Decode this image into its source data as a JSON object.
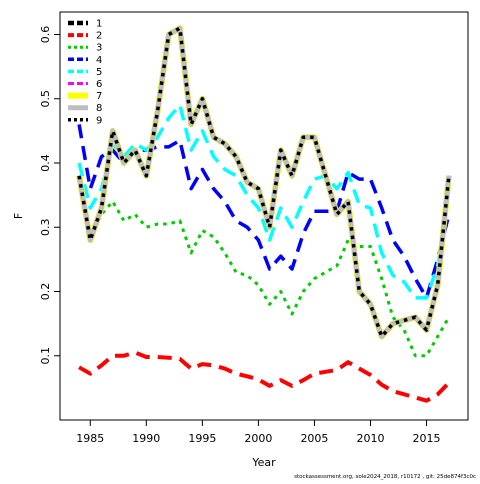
{
  "chart_data": {
    "type": "line",
    "title": "",
    "xlabel": "Year",
    "ylabel": "F",
    "xlim": [
      1982.3,
      2018.7
    ],
    "ylim": [
      0.0,
      0.635
    ],
    "xticks": [
      1985,
      1990,
      1995,
      2000,
      2005,
      2010,
      2015
    ],
    "yticks": [
      0.1,
      0.2,
      0.3,
      0.4,
      0.5,
      0.6
    ],
    "grid": false,
    "legend_position": "top-left",
    "x": [
      1984,
      1985,
      1986,
      1987,
      1988,
      1989,
      1990,
      1991,
      1992,
      1993,
      1994,
      1995,
      1996,
      1997,
      1998,
      1999,
      2000,
      2001,
      2002,
      2003,
      2004,
      2005,
      2006,
      2007,
      2008,
      2009,
      2010,
      2011,
      2012,
      2013,
      2014,
      2015,
      2016,
      2017
    ],
    "series": [
      {
        "name": "1",
        "color": "#000000",
        "dash": "long",
        "values": [
          0.38,
          0.28,
          0.33,
          0.45,
          0.4,
          0.42,
          0.38,
          0.48,
          0.6,
          0.61,
          0.46,
          0.5,
          0.44,
          0.43,
          0.41,
          0.37,
          0.36,
          0.3,
          0.42,
          0.38,
          0.44,
          0.44,
          0.38,
          0.32,
          0.34,
          0.2,
          0.18,
          0.13,
          0.15,
          0.155,
          0.16,
          0.14,
          0.21,
          0.38
        ]
      },
      {
        "name": "2",
        "color": "#ff0000",
        "dash": "long",
        "values": [
          0.082,
          0.072,
          0.085,
          0.1,
          0.1,
          0.105,
          0.098,
          0.098,
          0.097,
          0.095,
          0.08,
          0.087,
          0.085,
          0.08,
          0.072,
          0.068,
          0.063,
          0.053,
          0.062,
          0.053,
          0.062,
          0.072,
          0.075,
          0.078,
          0.09,
          0.08,
          0.07,
          0.055,
          0.045,
          0.04,
          0.035,
          0.03,
          0.04,
          0.058
        ]
      },
      {
        "name": "3",
        "color": "#00cc00",
        "dash": "dot",
        "values": [
          0.37,
          0.29,
          0.32,
          0.34,
          0.31,
          0.32,
          0.3,
          0.305,
          0.305,
          0.31,
          0.26,
          0.295,
          0.285,
          0.26,
          0.23,
          0.225,
          0.21,
          0.18,
          0.2,
          0.165,
          0.2,
          0.22,
          0.23,
          0.24,
          0.28,
          0.27,
          0.27,
          0.22,
          0.16,
          0.14,
          0.1,
          0.1,
          0.13,
          0.16
        ]
      },
      {
        "name": "4",
        "color": "#0000ff",
        "dash": "long",
        "values": [
          0.46,
          0.36,
          0.41,
          0.42,
          0.4,
          0.42,
          0.42,
          0.425,
          0.425,
          0.435,
          0.36,
          0.39,
          0.36,
          0.34,
          0.31,
          0.3,
          0.28,
          0.235,
          0.255,
          0.235,
          0.29,
          0.325,
          0.325,
          0.325,
          0.385,
          0.375,
          0.375,
          0.33,
          0.28,
          0.255,
          0.22,
          0.19,
          0.25,
          0.32
        ]
      },
      {
        "name": "5",
        "color": "#00ffff",
        "dash": "long",
        "values": [
          0.4,
          0.33,
          0.36,
          0.43,
          0.41,
          0.43,
          0.42,
          0.44,
          0.47,
          0.49,
          0.42,
          0.45,
          0.41,
          0.39,
          0.38,
          0.35,
          0.33,
          0.28,
          0.33,
          0.3,
          0.34,
          0.375,
          0.38,
          0.36,
          0.385,
          0.335,
          0.33,
          0.26,
          0.225,
          0.215,
          0.19,
          0.19,
          0.24,
          0.36
        ]
      },
      {
        "name": "6",
        "color": "#ff00ff",
        "dash": "dash",
        "values": [
          0.38,
          0.28,
          0.33,
          0.45,
          0.4,
          0.42,
          0.38,
          0.48,
          0.6,
          0.61,
          0.46,
          0.5,
          0.44,
          0.43,
          0.41,
          0.37,
          0.36,
          0.3,
          0.42,
          0.38,
          0.44,
          0.44,
          0.38,
          0.32,
          0.34,
          0.2,
          0.18,
          0.13,
          0.15,
          0.155,
          0.16,
          0.14,
          0.21,
          0.38
        ]
      },
      {
        "name": "7",
        "color": "#ffff00",
        "dash": "solid",
        "values": [
          0.38,
          0.28,
          0.33,
          0.45,
          0.4,
          0.42,
          0.38,
          0.48,
          0.6,
          0.61,
          0.46,
          0.5,
          0.44,
          0.43,
          0.41,
          0.37,
          0.36,
          0.3,
          0.42,
          0.38,
          0.44,
          0.44,
          0.38,
          0.32,
          0.34,
          0.2,
          0.18,
          0.13,
          0.15,
          0.155,
          0.16,
          0.14,
          0.21,
          0.38
        ]
      },
      {
        "name": "8",
        "color": "#bebebe",
        "dash": "solid",
        "values": [
          0.38,
          0.28,
          0.33,
          0.45,
          0.4,
          0.42,
          0.38,
          0.48,
          0.6,
          0.61,
          0.46,
          0.5,
          0.44,
          0.43,
          0.41,
          0.37,
          0.36,
          0.3,
          0.42,
          0.38,
          0.44,
          0.44,
          0.38,
          0.32,
          0.34,
          0.2,
          0.18,
          0.13,
          0.15,
          0.155,
          0.16,
          0.14,
          0.21,
          0.38
        ]
      },
      {
        "name": "9",
        "color": "#000000",
        "dash": "dot",
        "values": [
          0.38,
          0.28,
          0.33,
          0.45,
          0.4,
          0.42,
          0.38,
          0.48,
          0.6,
          0.61,
          0.46,
          0.5,
          0.44,
          0.43,
          0.41,
          0.37,
          0.36,
          0.3,
          0.42,
          0.38,
          0.44,
          0.44,
          0.38,
          0.32,
          0.34,
          0.2,
          0.18,
          0.13,
          0.15,
          0.155,
          0.16,
          0.14,
          0.21,
          0.38
        ]
      }
    ]
  },
  "footer": "stockassessment.org, sole2024_2018, r10172 , git: 25de874f3c0c"
}
